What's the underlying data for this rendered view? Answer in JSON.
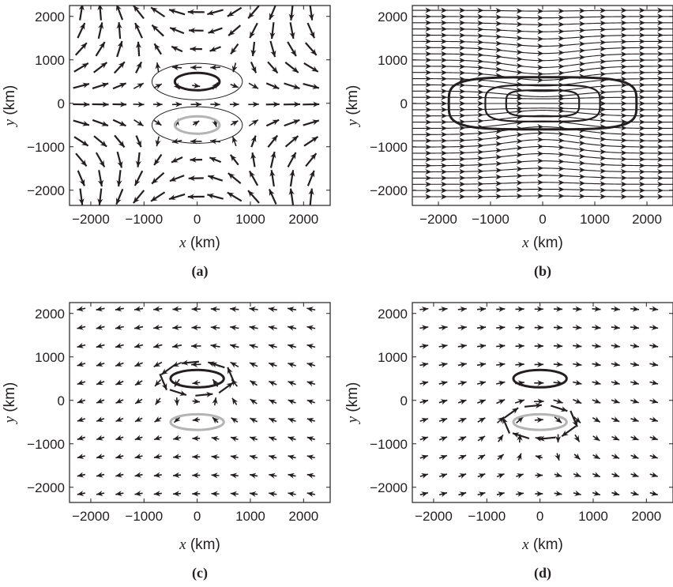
{
  "chart_data": [
    {
      "type": "vector-field",
      "panel_label": "(a)",
      "xlabel_var": "x",
      "xlabel_unit": " (km)",
      "ylabel_var": "y",
      "ylabel_unit": " (km)",
      "xlim": [
        -2400,
        2500
      ],
      "ylim": [
        -2350,
        2250
      ],
      "xticks": [
        -2000,
        -1000,
        0,
        1000,
        2000
      ],
      "yticks": [
        -2000,
        -1000,
        0,
        1000,
        2000
      ],
      "xtick_labels": [
        "−2000",
        "−1000",
        "0",
        "1000",
        "2000"
      ],
      "ytick_labels": [
        "−2000",
        "−1000",
        "0",
        "1000",
        "2000"
      ],
      "field": "a",
      "ellipses": [
        {
          "cx": 0,
          "cy": 500,
          "rx": 420,
          "ry": 200,
          "color": "#231f20",
          "weight": 3
        },
        {
          "cx": 0,
          "cy": 500,
          "rx": 850,
          "ry": 420,
          "color": "#231f20",
          "weight": 1
        },
        {
          "cx": 0,
          "cy": -500,
          "rx": 420,
          "ry": 200,
          "color": "#b4b4b4",
          "weight": 3
        },
        {
          "cx": 0,
          "cy": -500,
          "rx": 850,
          "ry": 420,
          "color": "#231f20",
          "weight": 1
        }
      ]
    },
    {
      "type": "streamline",
      "panel_label": "(b)",
      "xlabel_var": "x",
      "xlabel_unit": " (km)",
      "ylabel_var": "y",
      "ylabel_unit": " (km)",
      "xlim": [
        -2500,
        2500
      ],
      "ylim": [
        -2350,
        2250
      ],
      "xticks": [
        -2000,
        -1000,
        0,
        1000,
        2000
      ],
      "yticks": [
        -2000,
        -1000,
        0,
        1000,
        2000
      ],
      "xtick_labels": [
        "−2000",
        "−1000",
        "0",
        "1000",
        "2000"
      ],
      "ytick_labels": [
        "−2000",
        "−1000",
        "0",
        "1000",
        "2000"
      ],
      "field": "b",
      "ellipses": [
        {
          "cx": 0,
          "cy": 0,
          "rx": 1800,
          "ry": 600,
          "color": "#231f20",
          "weight": 3,
          "shape": "superellipse"
        },
        {
          "cx": 0,
          "cy": 0,
          "rx": 1100,
          "ry": 420,
          "color": "#231f20",
          "weight": 2.2,
          "shape": "superellipse"
        },
        {
          "cx": 0,
          "cy": 0,
          "rx": 700,
          "ry": 300,
          "color": "#231f20",
          "weight": 2.2,
          "shape": "superellipse"
        }
      ]
    },
    {
      "type": "vector-field",
      "panel_label": "(c)",
      "xlabel_var": "x",
      "xlabel_unit": " (km)",
      "ylabel_var": "y",
      "ylabel_unit": " (km)",
      "xlim": [
        -2400,
        2500
      ],
      "ylim": [
        -2350,
        2250
      ],
      "xticks": [
        -2000,
        -1000,
        0,
        1000,
        2000
      ],
      "yticks": [
        -2000,
        -1000,
        0,
        1000,
        2000
      ],
      "xtick_labels": [
        "−2000",
        "−1000",
        "0",
        "1000",
        "2000"
      ],
      "ytick_labels": [
        "−2000",
        "−1000",
        "0",
        "1000",
        "2000"
      ],
      "field": "c",
      "ellipses": [
        {
          "cx": 0,
          "cy": 500,
          "rx": 500,
          "ry": 200,
          "color": "#231f20",
          "weight": 3
        },
        {
          "cx": 0,
          "cy": -500,
          "rx": 500,
          "ry": 180,
          "color": "#b4b4b4",
          "weight": 3
        }
      ]
    },
    {
      "type": "vector-field",
      "panel_label": "(d)",
      "xlabel_var": "x",
      "xlabel_unit": " (km)",
      "ylabel_var": "y",
      "ylabel_unit": " (km)",
      "xlim": [
        -2400,
        2500
      ],
      "ylim": [
        -2350,
        2250
      ],
      "xticks": [
        -2000,
        -1000,
        0,
        1000,
        2000
      ],
      "yticks": [
        -2000,
        -1000,
        0,
        1000,
        2000
      ],
      "xtick_labels": [
        "−2000",
        "−1000",
        "0",
        "1000",
        "2000"
      ],
      "ytick_labels": [
        "−2000",
        "−1000",
        "0",
        "1000",
        "2000"
      ],
      "field": "d",
      "ellipses": [
        {
          "cx": 0,
          "cy": 500,
          "rx": 500,
          "ry": 200,
          "color": "#231f20",
          "weight": 3
        },
        {
          "cx": 0,
          "cy": -500,
          "rx": 500,
          "ry": 180,
          "color": "#b4b4b4",
          "weight": 3
        }
      ]
    }
  ]
}
